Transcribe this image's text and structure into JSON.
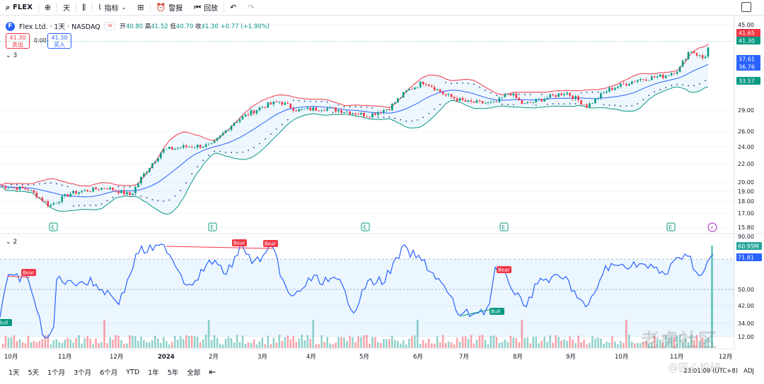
{
  "toolbar": {
    "symbol": "FLEX",
    "interval": "天",
    "indicators": "指标",
    "alert": "警报",
    "replay": "回放"
  },
  "legend": {
    "title": "Flex Ltd. · 1天 · NASDAQ",
    "open_label": "开",
    "open": "40.80",
    "high_label": "高",
    "high": "41.52",
    "low_label": "低",
    "low": "40.70",
    "close_label": "收",
    "close": "41.30",
    "change": "+0.77 (+1.90%)",
    "sell_price": "41.30",
    "sell_label": "卖出",
    "buy_price": "41.30",
    "buy_label": "买入",
    "spread": "0.00",
    "logo_letter": "F",
    "eq_badge": "=",
    "pane1_tag": "3",
    "pane2_tag": "2"
  },
  "price_axis": {
    "ticks": [
      "45.00",
      "41.65",
      "41.30",
      "37.61",
      "36.76",
      "33.57",
      "29.00",
      "26.00",
      "24.00",
      "22.00",
      "20.00",
      "19.00",
      "18.00",
      "17.00",
      "15.80"
    ],
    "labels": [
      {
        "text": "41.65",
        "color": "#f23645"
      },
      {
        "text": "41.30",
        "color": "#089981"
      },
      {
        "text": "37.61",
        "color": "#2962ff"
      },
      {
        "text": "36.76",
        "color": "#2962ff"
      },
      {
        "text": "33.57",
        "color": "#089981"
      }
    ]
  },
  "rsi_axis": {
    "ticks": [
      "90.00",
      "71.81",
      "50.00",
      "42.00",
      "34.00",
      "12.00"
    ],
    "labels": [
      {
        "text": "60.95M",
        "color": "#26a69a"
      },
      {
        "text": "71.81",
        "color": "#2962ff"
      }
    ]
  },
  "time_axis": [
    "10月",
    "11月",
    "12月",
    "2024",
    "2月",
    "3月",
    "4月",
    "5月",
    "6月",
    "7月",
    "8月",
    "9月",
    "10月",
    "11月",
    "12月"
  ],
  "signals": [
    {
      "text": "Bear",
      "type": "bear"
    },
    {
      "text": "Bear",
      "type": "bear"
    },
    {
      "text": "Bear",
      "type": "bear"
    },
    {
      "text": "Bear",
      "type": "bear"
    },
    {
      "text": "Bull",
      "type": "bull"
    },
    {
      "text": "Bull",
      "type": "bull"
    }
  ],
  "earnings_marker": "E",
  "range_buttons": [
    "1天",
    "5天",
    "1个月",
    "3个月",
    "6个月",
    "YTD",
    "1年",
    "5年",
    "全部"
  ],
  "status": {
    "time": "23:01:09 (UTC+8)",
    "adj": "ADJ"
  },
  "watermark": "老虎社区",
  "watermark_sub": "@匠心投研",
  "colors": {
    "up": "#089981",
    "down": "#f23645",
    "band_upper": "#f23645",
    "band_lower": "#089981",
    "basis": "#2962ff",
    "rsi": "#2962ff",
    "accent": "#2962ff"
  },
  "icons": [
    "plus-circle-icon",
    "candles-icon",
    "indicators-icon",
    "layout-icon",
    "alert-icon",
    "replay-icon",
    "undo-icon",
    "fullscreen-icon",
    "calendar-range-icon",
    "lightning-icon"
  ]
}
